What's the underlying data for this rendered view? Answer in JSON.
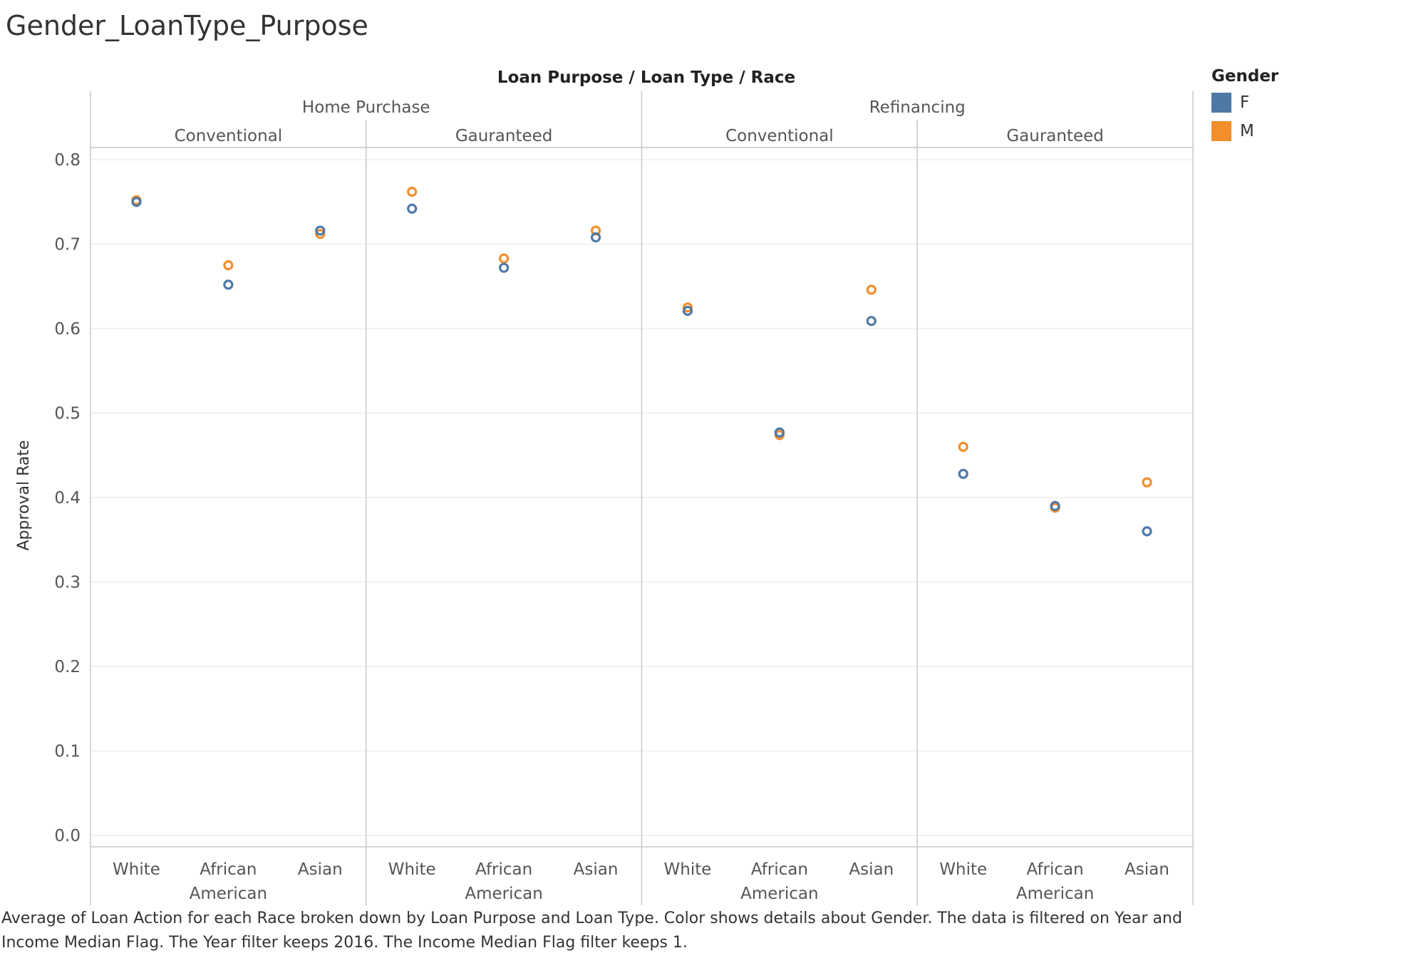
{
  "title": "Gender_LoanType_Purpose",
  "legend": {
    "title": "Gender",
    "items": [
      {
        "label": "F",
        "color": "#4e79a7"
      },
      {
        "label": "M",
        "color": "#f28e2b"
      }
    ]
  },
  "caption": "Average of Loan Action for each Race broken down by Loan Purpose and Loan Type.  Color shows details about Gender. The data is filtered on Year and Income Median Flag. The Year filter keeps 2016. The Income Median Flag filter keeps 1.",
  "chart_data": {
    "type": "scatter",
    "header": "Loan Purpose  /  Loan Type  /  Race",
    "ylabel": "Approval Rate",
    "ylim": [
      0.0,
      0.8
    ],
    "yticks": [
      "0.0",
      "0.1",
      "0.2",
      "0.3",
      "0.4",
      "0.5",
      "0.6",
      "0.7",
      "0.8"
    ],
    "grid": true,
    "legend_position": "right",
    "purposes": [
      "Home Purchase",
      "Refinancing"
    ],
    "loan_types": [
      "Conventional",
      "Gauranteed"
    ],
    "races": [
      "White",
      "African American",
      "Asian"
    ],
    "panels": [
      {
        "purpose": "Home Purchase",
        "loan_type": "Conventional",
        "F": [
          0.75,
          0.652,
          0.716
        ],
        "M": [
          0.752,
          0.675,
          0.712
        ]
      },
      {
        "purpose": "Home Purchase",
        "loan_type": "Gauranteed",
        "F": [
          0.742,
          0.672,
          0.708
        ],
        "M": [
          0.762,
          0.683,
          0.716
        ]
      },
      {
        "purpose": "Refinancing",
        "loan_type": "Conventional",
        "F": [
          0.621,
          0.477,
          0.609
        ],
        "M": [
          0.625,
          0.474,
          0.646
        ]
      },
      {
        "purpose": "Refinancing",
        "loan_type": "Gauranteed",
        "F": [
          0.428,
          0.39,
          0.36
        ],
        "M": [
          0.46,
          0.388,
          0.418
        ]
      }
    ]
  }
}
